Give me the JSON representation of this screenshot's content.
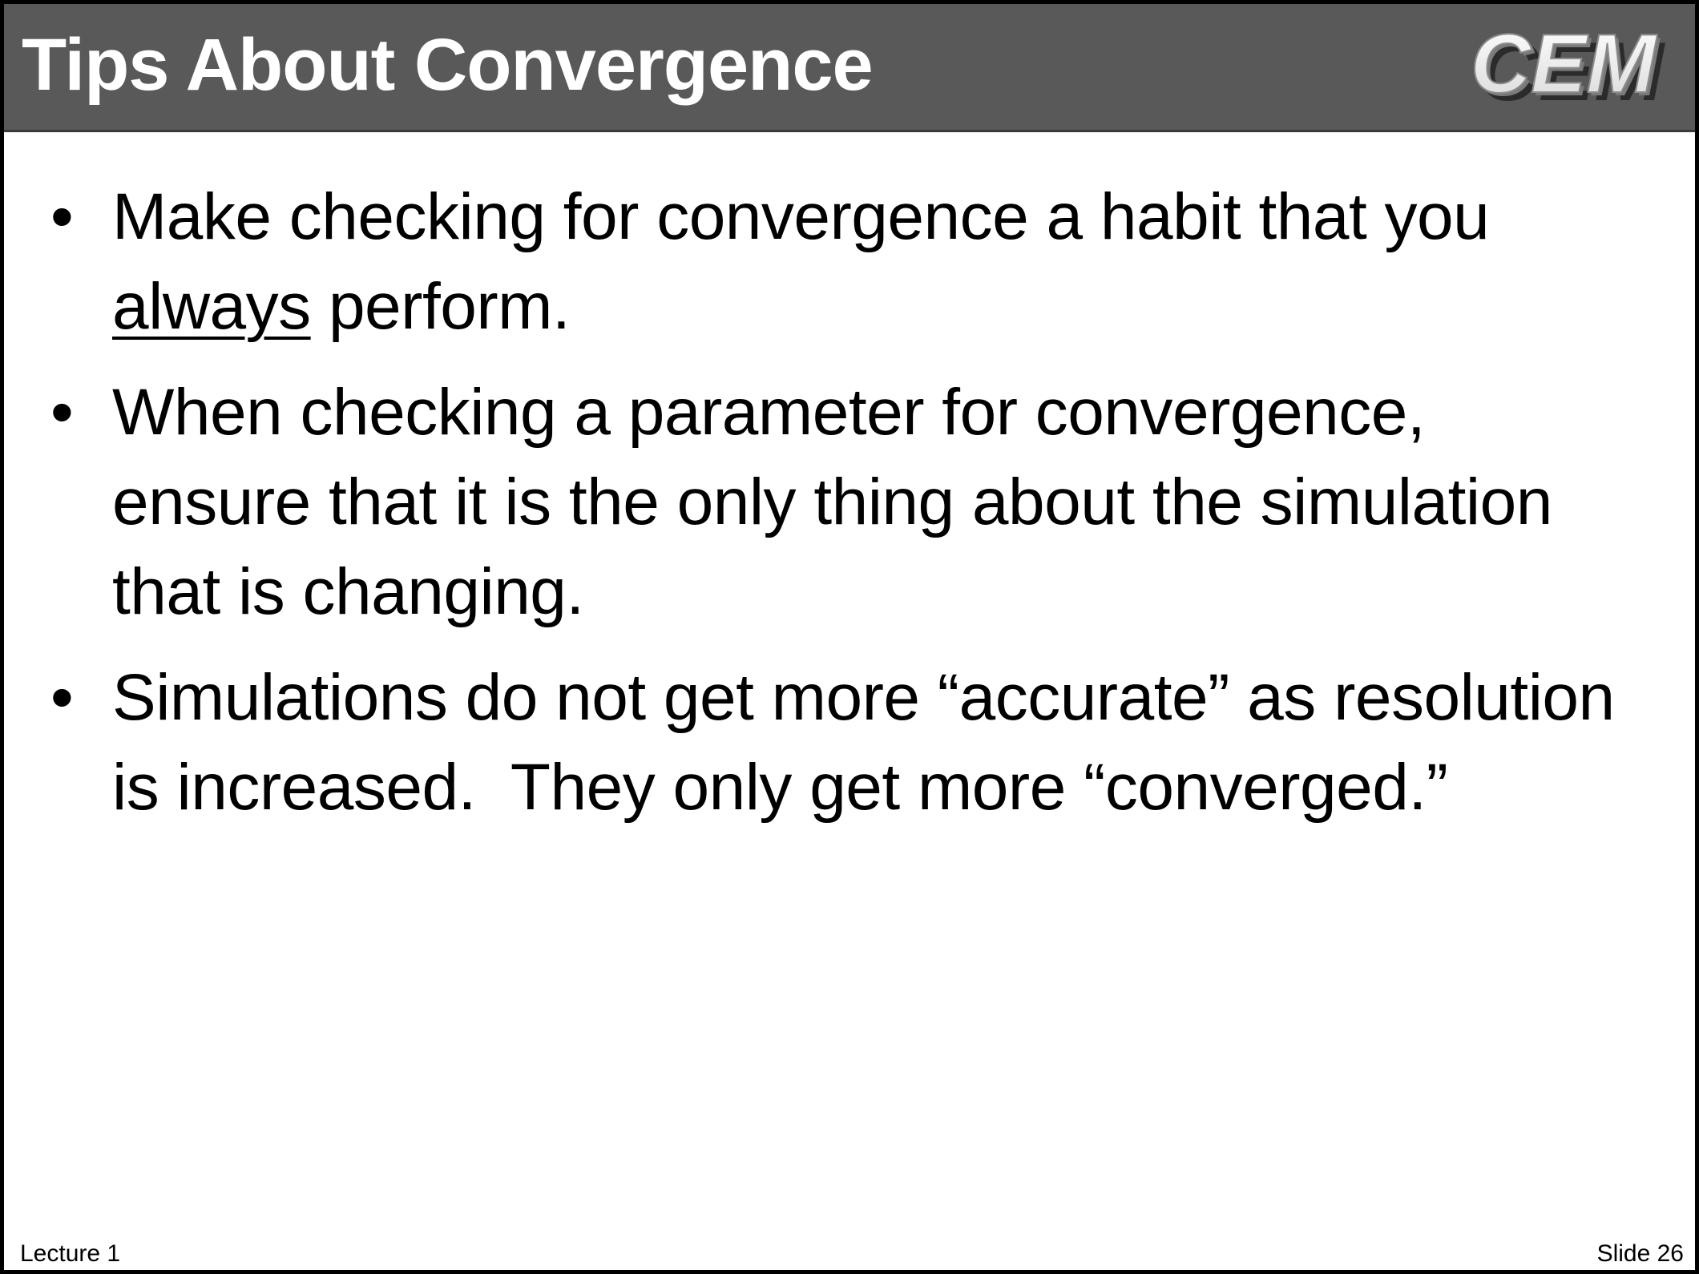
{
  "slide": {
    "title": "Tips About Convergence",
    "logo_text": "CEM",
    "colors": {
      "title_bar": "#595959",
      "title_text": "#ffffff",
      "body_text": "#000000",
      "border": "#000000"
    },
    "bullets": [
      {
        "before": "Make checking for convergence a habit that you ",
        "emphasis": "always",
        "after": " perform."
      },
      {
        "text": "When checking a parameter for convergence, ensure that it is the only thing about the simulation that is changing."
      },
      {
        "text": "Simulations do not get more “accurate” as resolution is increased.  They only get more “converged.”"
      }
    ],
    "footer": {
      "left": "Lecture 1",
      "right": "Slide 26"
    }
  }
}
